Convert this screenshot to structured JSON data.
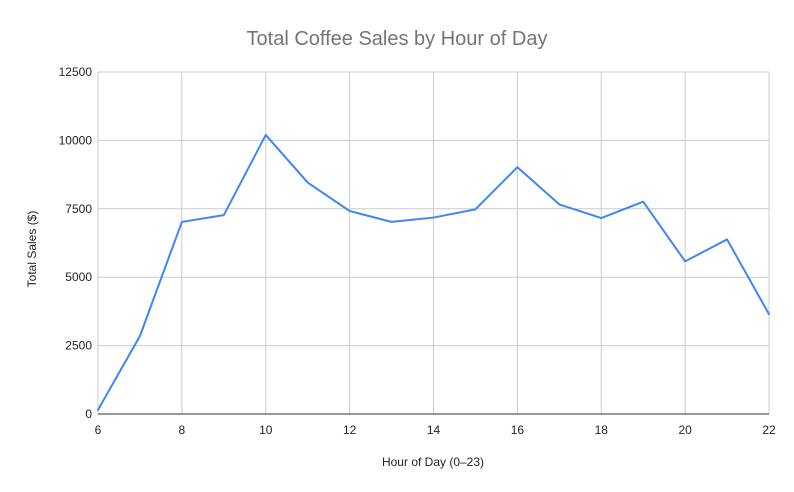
{
  "chart_data": {
    "type": "line",
    "title": "Total Coffee Sales by Hour of Day",
    "xlabel": "Hour of Day (0–23)",
    "ylabel": "Total Sales ($)",
    "x": [
      6,
      7,
      8,
      9,
      10,
      11,
      12,
      13,
      14,
      15,
      16,
      17,
      18,
      19,
      20,
      21,
      22
    ],
    "series": [
      {
        "values": [
          150,
          2850,
          7020,
          7270,
          10200,
          8460,
          7420,
          7020,
          7180,
          7480,
          9020,
          7660,
          7160,
          7760,
          5580,
          6380,
          3650
        ],
        "color": "#4285f4"
      }
    ],
    "xlim": [
      6,
      22
    ],
    "ylim": [
      0,
      12500
    ],
    "x_ticks": [
      "6",
      "8",
      "10",
      "12",
      "14",
      "16",
      "18",
      "20",
      "22"
    ],
    "x_tick_values": [
      6,
      8,
      10,
      12,
      14,
      16,
      18,
      20,
      22
    ],
    "y_ticks": [
      "0",
      "2500",
      "5000",
      "7500",
      "10000",
      "12500"
    ],
    "y_tick_values": [
      0,
      2500,
      5000,
      7500,
      10000,
      12500
    ],
    "grid": true,
    "legend": "none",
    "colors": {
      "grid": "#cccccc",
      "axis": "#333333",
      "title": "#757575",
      "text": "#222222"
    }
  }
}
